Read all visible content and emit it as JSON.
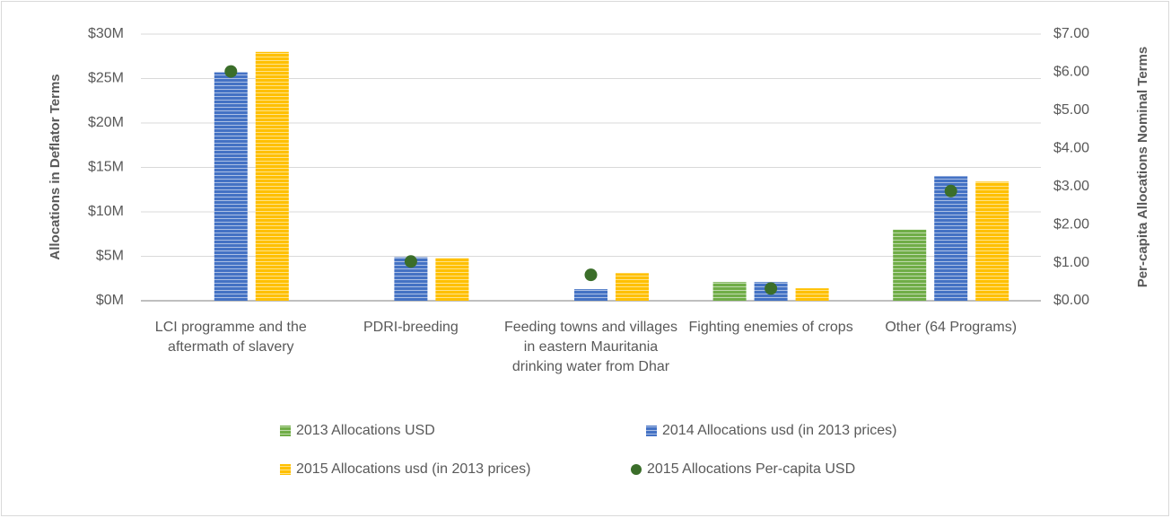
{
  "chart_data": {
    "type": "bar",
    "ylabel": "Allocations in Deflator Terms",
    "y2label": "Per-capita Allocations Nominal Terms",
    "categories": [
      "LCI programme and the aftermath of slavery",
      "PDRI-breeding",
      "Feeding towns and villages in eastern Mauritania drinking water from Dhar",
      "Fighting enemies of crops",
      "Other (64 Programs)"
    ],
    "series": [
      {
        "name": "2013 Allocations USD",
        "color": "#70ad47",
        "values": [
          0,
          0,
          0,
          2.1,
          8.0
        ]
      },
      {
        "name": "2014 Allocations usd (in 2013 prices)",
        "color": "#4472c4",
        "values": [
          25.7,
          4.9,
          1.3,
          2.1,
          14.0
        ]
      },
      {
        "name": "2015 Allocations usd (in 2013 prices)",
        "color": "#ffc000",
        "values": [
          28.0,
          4.8,
          3.1,
          1.4,
          13.4
        ]
      },
      {
        "name": "2015 Allocations Per-capita USD",
        "color": "#3b6e2a",
        "type": "scatter",
        "axis": "y2",
        "values": [
          6.02,
          1.03,
          0.68,
          0.32,
          2.88
        ]
      }
    ],
    "ylim": [
      0,
      30
    ],
    "yticks": [
      {
        "value": 0,
        "label": "$0M"
      },
      {
        "value": 5,
        "label": "$5M"
      },
      {
        "value": 10,
        "label": "$10M"
      },
      {
        "value": 15,
        "label": "$15M"
      },
      {
        "value": 20,
        "label": "$20M"
      },
      {
        "value": 25,
        "label": "$25M"
      },
      {
        "value": 30,
        "label": "$30M"
      }
    ],
    "y2lim": [
      0,
      7
    ],
    "y2ticks": [
      {
        "value": 0,
        "label": "$0.00"
      },
      {
        "value": 1,
        "label": "$1.00"
      },
      {
        "value": 2,
        "label": "$2.00"
      },
      {
        "value": 3,
        "label": "$3.00"
      },
      {
        "value": 4,
        "label": "$4.00"
      },
      {
        "value": 5,
        "label": "$5.00"
      },
      {
        "value": 6,
        "label": "$6.00"
      },
      {
        "value": 7,
        "label": "$7.00"
      }
    ],
    "legend": "bottom"
  }
}
